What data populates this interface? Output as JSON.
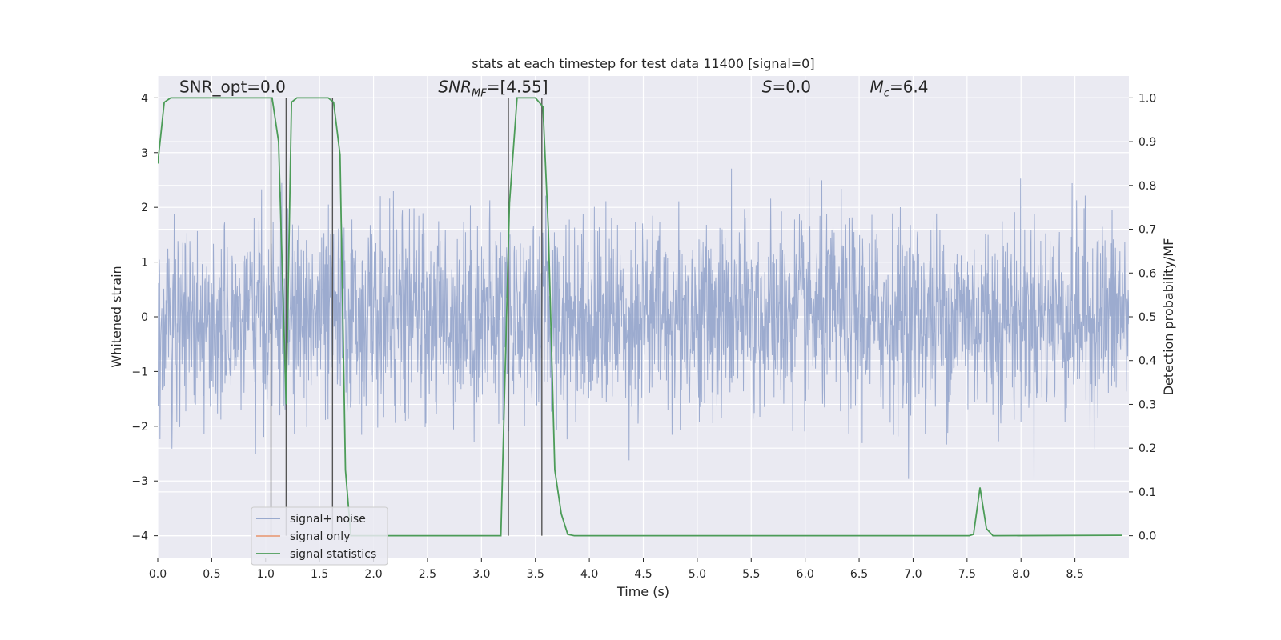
{
  "chart_data": {
    "type": "line",
    "title": "stats at each timestep for test data 11400 [signal=0]",
    "xlabel": "Time (s)",
    "ylabel_left": "Whitened strain",
    "ylabel_right": "Detection probability/MF",
    "xlim": [
      0,
      9.0
    ],
    "ylim_left": [
      -4.4,
      4.4
    ],
    "ylim_right": [
      -0.05,
      1.05
    ],
    "x_ticks": [
      "0.0",
      "0.5",
      "1.0",
      "1.5",
      "2.0",
      "2.5",
      "3.0",
      "3.5",
      "4.0",
      "4.5",
      "5.0",
      "5.5",
      "6.0",
      "6.5",
      "7.0",
      "7.5",
      "8.0",
      "8.5"
    ],
    "y_left_ticks": [
      "4",
      "3",
      "2",
      "1",
      "0",
      "−1",
      "−2",
      "−3",
      "−4"
    ],
    "y_right_ticks": [
      "1.0",
      "0.9",
      "0.8",
      "0.7",
      "0.6",
      "0.5",
      "0.4",
      "0.3",
      "0.2",
      "0.1",
      "0.0"
    ],
    "grid": true,
    "legend_position": "lower-left",
    "annotations": [
      {
        "text": "SNR_opt=0.0",
        "x": 0.2,
        "y": 4.1
      },
      {
        "text": "SNR_MF=[4.55]",
        "x": 2.6,
        "y": 4.1
      },
      {
        "text": "S=0.0",
        "x": 5.6,
        "y": 4.1
      },
      {
        "text": "M_c=6.4",
        "x": 6.6,
        "y": 4.1
      }
    ],
    "vertical_markers": [
      1.05,
      1.19,
      1.62,
      3.25,
      3.56
    ],
    "series": [
      {
        "name": "signal+ noise",
        "color": "#8ea0c9",
        "noise_std": 0.85,
        "noise_peak": 3.6,
        "x_range": [
          0,
          9.0
        ]
      },
      {
        "name": "signal only",
        "color": "#e8a080",
        "x": [],
        "y": []
      },
      {
        "name": "signal statistics",
        "color": "#4c9c58",
        "x": [
          0.0,
          0.06,
          0.12,
          0.18,
          1.0,
          1.06,
          1.12,
          1.19,
          1.24,
          1.29,
          1.58,
          1.63,
          1.69,
          1.74,
          1.79,
          3.18,
          3.26,
          3.33,
          3.5,
          3.57,
          3.62,
          3.68,
          3.74,
          3.8,
          3.86,
          3.92,
          7.52,
          7.56,
          7.62,
          7.68,
          7.74,
          8.94
        ],
        "y": [
          0.85,
          0.99,
          1.0,
          1.0,
          1.0,
          1.0,
          0.9,
          0.3,
          0.99,
          1.0,
          1.0,
          0.99,
          0.87,
          0.15,
          0.0,
          0.0,
          0.76,
          1.0,
          1.0,
          0.98,
          0.7,
          0.15,
          0.05,
          0.003,
          0.0,
          0.0,
          0.0,
          0.003,
          0.11,
          0.016,
          0.0,
          0.001
        ]
      }
    ]
  }
}
